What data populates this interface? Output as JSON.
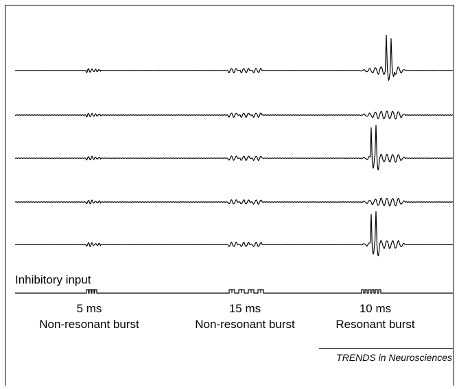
{
  "figure": {
    "input_label": "Inhibitory input",
    "bursts": [
      {
        "duration": "5 ms",
        "label": "Non-resonant burst"
      },
      {
        "duration": "15 ms",
        "label": "Non-resonant burst"
      },
      {
        "duration": "10 ms",
        "label": "Resonant burst"
      }
    ],
    "credit": "TRENDS in Neurosciences"
  }
}
